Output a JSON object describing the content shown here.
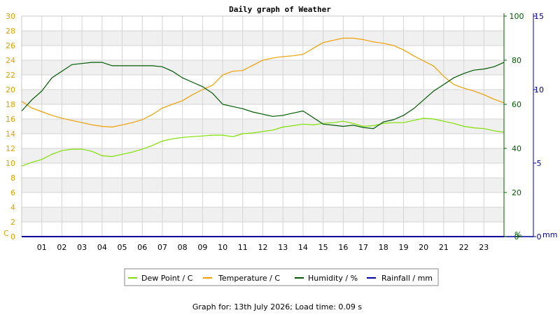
{
  "chart_data": {
    "type": "line",
    "title": "Daily graph of Weather",
    "x_labels": [
      "01",
      "02",
      "03",
      "04",
      "05",
      "06",
      "07",
      "08",
      "09",
      "10",
      "11",
      "12",
      "13",
      "14",
      "15",
      "16",
      "17",
      "18",
      "19",
      "20",
      "21",
      "22",
      "23"
    ],
    "x_range": [
      0,
      24
    ],
    "axes": {
      "temperature": {
        "unit": "C",
        "ylim": [
          0,
          30
        ],
        "ticks": [
          0,
          2,
          4,
          6,
          8,
          10,
          12,
          14,
          16,
          18,
          20,
          22,
          24,
          26,
          28,
          30
        ]
      },
      "humidity": {
        "unit": "%",
        "ylim": [
          0,
          100
        ],
        "ticks": [
          0,
          20,
          40,
          60,
          80,
          100
        ]
      },
      "rainfall": {
        "unit": "mm",
        "ylim": [
          0,
          15
        ],
        "ticks": [
          0,
          5,
          10,
          15
        ]
      }
    },
    "grid": true,
    "legend_position": "bottom",
    "series": [
      {
        "name": "Dew Point / C",
        "axis": "temperature",
        "color": "#7fe000",
        "x": [
          0,
          0.5,
          1,
          1.5,
          2,
          2.5,
          3,
          3.5,
          4,
          4.5,
          5,
          5.5,
          6,
          6.5,
          7,
          7.5,
          8,
          8.5,
          9,
          9.5,
          10,
          10.5,
          11,
          11.5,
          12,
          12.5,
          13,
          13.5,
          14,
          14.5,
          15,
          15.5,
          16,
          16.5,
          17,
          17.5,
          18,
          18.5,
          19,
          19.5,
          20,
          20.5,
          21,
          21.5,
          22,
          22.5,
          23,
          23.5,
          24
        ],
        "y": [
          9.6,
          10.1,
          10.5,
          11.2,
          11.7,
          11.9,
          11.9,
          11.6,
          11.0,
          10.9,
          11.2,
          11.5,
          11.9,
          12.4,
          13.0,
          13.3,
          13.5,
          13.6,
          13.7,
          13.8,
          13.8,
          13.6,
          14.0,
          14.1,
          14.3,
          14.5,
          14.9,
          15.1,
          15.3,
          15.2,
          15.4,
          15.5,
          15.7,
          15.4,
          15.0,
          15.1,
          15.4,
          15.5,
          15.5,
          15.8,
          16.1,
          16.0,
          15.7,
          15.4,
          15.0,
          14.8,
          14.7,
          14.4,
          14.2
        ]
      },
      {
        "name": "Temperature / C",
        "axis": "temperature",
        "color": "#f0a000",
        "x": [
          0,
          0.5,
          1,
          1.5,
          2,
          2.5,
          3,
          3.5,
          4,
          4.5,
          5,
          5.5,
          6,
          6.5,
          7,
          7.5,
          8,
          8.5,
          9,
          9.5,
          10,
          10.5,
          11,
          11.5,
          12,
          12.5,
          13,
          13.5,
          14,
          14.5,
          15,
          15.5,
          16,
          16.5,
          17,
          17.5,
          18,
          18.5,
          19,
          19.5,
          20,
          20.5,
          21,
          21.5,
          22,
          22.5,
          23,
          23.5,
          24
        ],
        "y": [
          18.4,
          17.5,
          17.0,
          16.5,
          16.1,
          15.8,
          15.5,
          15.2,
          15.0,
          14.9,
          15.2,
          15.5,
          15.9,
          16.6,
          17.5,
          18.0,
          18.5,
          19.3,
          20.0,
          20.6,
          22.0,
          22.5,
          22.6,
          23.3,
          24.0,
          24.3,
          24.5,
          24.6,
          24.8,
          25.6,
          26.4,
          26.7,
          27.0,
          27.0,
          26.8,
          26.5,
          26.3,
          26.0,
          25.4,
          24.6,
          23.9,
          23.2,
          21.8,
          20.7,
          20.2,
          19.8,
          19.3,
          18.7,
          18.2
        ]
      },
      {
        "name": "Humidity / %",
        "axis": "humidity",
        "color": "#005a00",
        "x": [
          0,
          0.5,
          1,
          1.5,
          2,
          2.5,
          3,
          3.5,
          4,
          4.5,
          5,
          5.5,
          6,
          6.5,
          7,
          7.5,
          8,
          8.5,
          9,
          9.5,
          10,
          10.5,
          11,
          11.5,
          12,
          12.5,
          13,
          13.5,
          14,
          14.5,
          15,
          15.5,
          16,
          16.5,
          17,
          17.5,
          18,
          18.5,
          19,
          19.5,
          20,
          20.5,
          21,
          21.5,
          22,
          22.5,
          23,
          23.5,
          24
        ],
        "y": [
          57,
          62,
          66,
          72,
          75,
          78,
          78.5,
          79,
          79,
          77.5,
          77.5,
          77.5,
          77.5,
          77.5,
          77,
          75,
          72,
          70,
          68,
          65,
          60,
          59,
          58,
          56.5,
          55.5,
          54.5,
          55,
          56,
          57,
          54,
          51,
          50.5,
          50,
          50.5,
          49.5,
          49,
          52,
          53,
          55,
          58,
          62,
          66,
          69,
          72,
          74,
          75.5,
          76,
          77,
          79
        ]
      },
      {
        "name": "Rainfall / mm",
        "axis": "rainfall",
        "color": "#0000a0",
        "x": [
          0,
          24
        ],
        "y": [
          0,
          0
        ]
      }
    ]
  },
  "footer": "Graph for: 13th July 2026; Load time: 0.09 s"
}
